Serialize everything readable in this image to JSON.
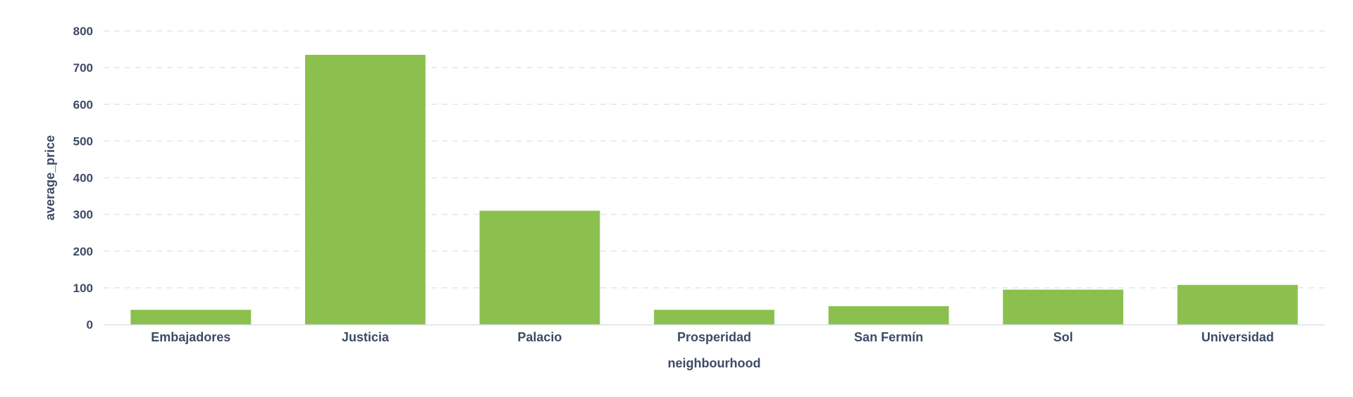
{
  "chart_data": {
    "type": "bar",
    "xlabel": "neighbourhood",
    "ylabel": "average_price",
    "categories": [
      "Embajadores",
      "Justicia",
      "Palacio",
      "Prosperidad",
      "San Fermín",
      "Sol",
      "Universidad"
    ],
    "values": [
      40,
      735,
      310,
      40,
      50,
      95,
      108
    ],
    "ylim": [
      0,
      800
    ],
    "yticks": [
      0,
      100,
      200,
      300,
      400,
      500,
      600,
      700,
      800
    ],
    "ytick_labels": [
      "0",
      "100",
      "200",
      "300",
      "400",
      "500",
      "600",
      "700",
      "800"
    ],
    "grid": true,
    "legend": "none",
    "colors": {
      "bar": "#8bc04e",
      "text": "#3d4a66",
      "grid": "#e3e6ea",
      "axis": "#dde0e4"
    }
  }
}
